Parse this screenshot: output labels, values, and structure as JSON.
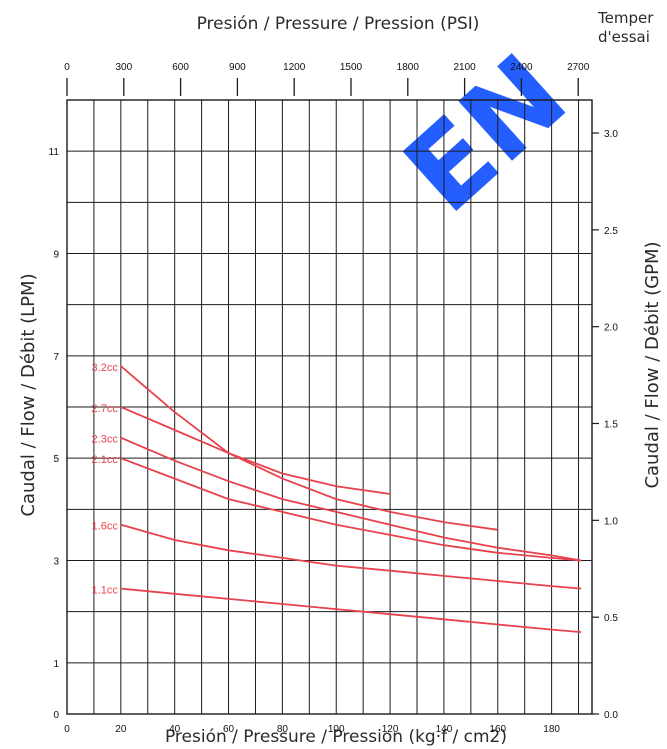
{
  "top_label": "Presión / Pressure / Pression (PSI)",
  "side_note": [
    "Temper",
    "d'essai"
  ],
  "chart_data": {
    "type": "line",
    "title": "",
    "xlabel": "Presión / Pressure / Pression (kg·f / cm2)",
    "ylabel": "Caudal / Flow / Débit (LPM)",
    "x_top_label": "Presión / Pressure / Pression (PSI)",
    "y_right_label": "Caudal / Flow / Débit (GPM)",
    "xlim": [
      0,
      195
    ],
    "ylim": [
      0,
      12
    ],
    "x_ticks": [
      0,
      20,
      40,
      60,
      80,
      100,
      120,
      140,
      160,
      180
    ],
    "y_ticks": [
      0,
      1,
      3,
      5,
      7,
      9,
      11
    ],
    "x_top_ticks": [
      0,
      300,
      600,
      900,
      1200,
      1500,
      1800,
      2100,
      2400,
      2700
    ],
    "y_right_ticks": [
      "0.0",
      "0.5",
      "1.0",
      "1.5",
      "2.0",
      "2.5",
      "3.0"
    ],
    "grid": true,
    "series": [
      {
        "name": "3.2cc",
        "points": [
          [
            20,
            6.8
          ],
          [
            40,
            5.9
          ],
          [
            60,
            5.1
          ],
          [
            80,
            4.7
          ],
          [
            100,
            4.45
          ],
          [
            120,
            4.3
          ]
        ]
      },
      {
        "name": "2.7cc",
        "points": [
          [
            20,
            6.0
          ],
          [
            40,
            5.55
          ],
          [
            60,
            5.1
          ],
          [
            80,
            4.6
          ],
          [
            100,
            4.2
          ],
          [
            120,
            3.95
          ],
          [
            140,
            3.75
          ],
          [
            160,
            3.6
          ]
        ]
      },
      {
        "name": "2.3cc",
        "points": [
          [
            20,
            5.4
          ],
          [
            40,
            4.95
          ],
          [
            60,
            4.55
          ],
          [
            80,
            4.2
          ],
          [
            100,
            3.95
          ],
          [
            120,
            3.7
          ],
          [
            140,
            3.45
          ],
          [
            160,
            3.25
          ],
          [
            180,
            3.1
          ],
          [
            191,
            3.0
          ]
        ]
      },
      {
        "name": "2.1cc",
        "points": [
          [
            20,
            5.0
          ],
          [
            40,
            4.6
          ],
          [
            60,
            4.2
          ],
          [
            80,
            3.95
          ],
          [
            100,
            3.7
          ],
          [
            120,
            3.5
          ],
          [
            140,
            3.3
          ],
          [
            160,
            3.15
          ],
          [
            180,
            3.05
          ],
          [
            191,
            3.0
          ]
        ]
      },
      {
        "name": "1.6cc",
        "points": [
          [
            20,
            3.7
          ],
          [
            40,
            3.4
          ],
          [
            60,
            3.2
          ],
          [
            80,
            3.05
          ],
          [
            100,
            2.9
          ],
          [
            120,
            2.8
          ],
          [
            140,
            2.7
          ],
          [
            160,
            2.6
          ],
          [
            180,
            2.5
          ],
          [
            191,
            2.45
          ]
        ]
      },
      {
        "name": "1.1cc",
        "points": [
          [
            20,
            2.45
          ],
          [
            40,
            2.35
          ],
          [
            60,
            2.25
          ],
          [
            80,
            2.15
          ],
          [
            100,
            2.05
          ],
          [
            120,
            1.95
          ],
          [
            140,
            1.85
          ],
          [
            160,
            1.75
          ],
          [
            180,
            1.65
          ],
          [
            191,
            1.6
          ]
        ]
      }
    ],
    "colors": {
      "series": "#e8424c",
      "grid": "#1a1a1a",
      "watermark": "#1a56ff"
    }
  },
  "watermark": "EN"
}
